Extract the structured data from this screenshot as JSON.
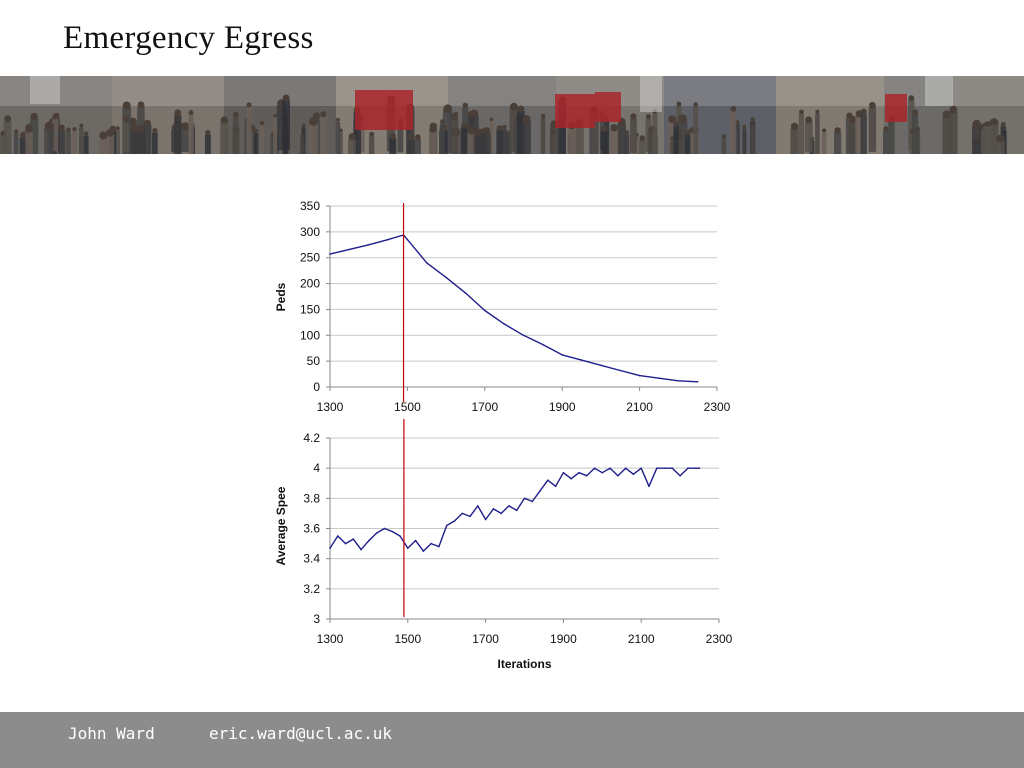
{
  "slide": {
    "title": "Emergency Egress",
    "banner_icon": "crowd-photo-banner"
  },
  "footer": {
    "author": "John Ward",
    "email": "eric.ward@ucl.ac.uk"
  },
  "colors": {
    "series": "#1f1f8c",
    "marker_line": "#c00000",
    "grid": "#c8c8c8",
    "footer_bg": "#8c8c8c"
  },
  "chart_data": [
    {
      "type": "line",
      "title": "",
      "xlabel": "",
      "ylabel": "Peds",
      "xlim": [
        1300,
        2300
      ],
      "ylim": [
        0,
        350
      ],
      "xticks": [
        1300,
        1500,
        1700,
        1900,
        2100,
        2300
      ],
      "yticks": [
        0,
        50,
        100,
        150,
        200,
        250,
        300,
        350
      ],
      "grid": true,
      "vline_x": 1490,
      "series": [
        {
          "x": [
            1300,
            1350,
            1400,
            1450,
            1490,
            1500,
            1550,
            1600,
            1650,
            1700,
            1750,
            1800,
            1850,
            1900,
            1950,
            2000,
            2050,
            2100,
            2150,
            2200,
            2250
          ],
          "y": [
            257,
            266,
            275,
            285,
            294,
            285,
            240,
            212,
            182,
            148,
            122,
            100,
            82,
            62,
            52,
            42,
            32,
            22,
            17,
            12,
            10
          ]
        }
      ]
    },
    {
      "type": "line",
      "title": "",
      "xlabel": "Iterations",
      "ylabel": "Average Spee",
      "xlim": [
        1300,
        2300
      ],
      "ylim": [
        3,
        4.2
      ],
      "xticks": [
        1300,
        1500,
        1700,
        1900,
        2100,
        2300
      ],
      "yticks": [
        3,
        3.2,
        3.4,
        3.6,
        3.8,
        4,
        4.2
      ],
      "grid": true,
      "vline_x": 1490,
      "series": [
        {
          "x": [
            1300,
            1320,
            1340,
            1360,
            1380,
            1400,
            1420,
            1440,
            1460,
            1480,
            1500,
            1520,
            1540,
            1560,
            1580,
            1600,
            1620,
            1640,
            1660,
            1680,
            1700,
            1720,
            1740,
            1760,
            1780,
            1800,
            1820,
            1840,
            1860,
            1880,
            1900,
            1920,
            1940,
            1960,
            1980,
            2000,
            2020,
            2040,
            2060,
            2080,
            2100,
            2120,
            2140,
            2160,
            2180,
            2200,
            2220,
            2240,
            2250
          ],
          "y": [
            3.47,
            3.55,
            3.5,
            3.53,
            3.46,
            3.52,
            3.57,
            3.6,
            3.58,
            3.55,
            3.47,
            3.52,
            3.45,
            3.5,
            3.48,
            3.62,
            3.65,
            3.7,
            3.68,
            3.75,
            3.66,
            3.73,
            3.7,
            3.75,
            3.72,
            3.8,
            3.78,
            3.85,
            3.92,
            3.88,
            3.97,
            3.93,
            3.97,
            3.95,
            4,
            3.97,
            4,
            3.95,
            4,
            3.96,
            4,
            3.88,
            4,
            4,
            4,
            3.95,
            4,
            4,
            4
          ]
        }
      ]
    }
  ]
}
